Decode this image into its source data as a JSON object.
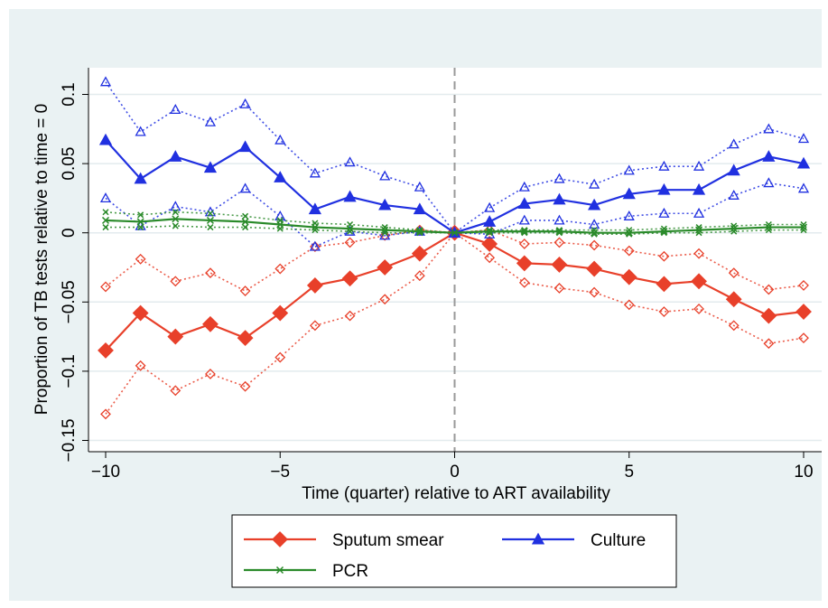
{
  "chart_data": {
    "type": "line",
    "xlabel": "Time (quarter) relative to ART availability",
    "ylabel": "Proportion of TB tests relative to time = 0",
    "xlim": [
      -10,
      10
    ],
    "ylim": [
      -0.15,
      0.1
    ],
    "xticks": [
      -10,
      -5,
      0,
      5,
      10
    ],
    "xtick_labels": [
      "−10",
      "−5",
      "0",
      "5",
      "10"
    ],
    "yticks": [
      -0.15,
      -0.1,
      -0.05,
      0,
      0.05,
      0.1
    ],
    "ytick_labels": [
      "−0.15",
      "−0.1",
      "−0.05",
      "0",
      "0.05",
      "0.1"
    ],
    "grid": true,
    "reference_line_x": 0,
    "legend_position": "bottom",
    "x": [
      -10,
      -9,
      -8,
      -7,
      -6,
      -5,
      -4,
      -3,
      -2,
      -1,
      0,
      1,
      2,
      3,
      4,
      5,
      6,
      7,
      8,
      9,
      10
    ],
    "series": [
      {
        "name": "Sputum smear",
        "color": "#e8402a",
        "marker": "diamond",
        "values": [
          -0.085,
          -0.058,
          -0.075,
          -0.066,
          -0.076,
          -0.058,
          -0.038,
          -0.033,
          -0.025,
          -0.015,
          0,
          -0.008,
          -0.022,
          -0.023,
          -0.026,
          -0.032,
          -0.037,
          -0.035,
          -0.048,
          -0.06,
          -0.057
        ],
        "ci_upper": [
          -0.039,
          -0.019,
          -0.035,
          -0.029,
          -0.042,
          -0.026,
          -0.01,
          -0.007,
          -0.002,
          0.002,
          0,
          0.002,
          -0.008,
          -0.007,
          -0.009,
          -0.013,
          -0.017,
          -0.015,
          -0.029,
          -0.041,
          -0.038
        ],
        "ci_lower": [
          -0.131,
          -0.096,
          -0.114,
          -0.102,
          -0.111,
          -0.09,
          -0.067,
          -0.06,
          -0.048,
          -0.031,
          0,
          -0.018,
          -0.036,
          -0.04,
          -0.043,
          -0.052,
          -0.057,
          -0.055,
          -0.067,
          -0.08,
          -0.076
        ]
      },
      {
        "name": "Culture",
        "color": "#2030e0",
        "marker": "triangle",
        "values": [
          0.067,
          0.039,
          0.055,
          0.047,
          0.062,
          0.04,
          0.017,
          0.026,
          0.02,
          0.017,
          0,
          0.008,
          0.021,
          0.024,
          0.02,
          0.028,
          0.031,
          0.031,
          0.045,
          0.055,
          0.05
        ],
        "ci_upper": [
          0.109,
          0.073,
          0.089,
          0.08,
          0.093,
          0.067,
          0.043,
          0.051,
          0.041,
          0.033,
          0,
          0.018,
          0.033,
          0.039,
          0.035,
          0.045,
          0.048,
          0.048,
          0.064,
          0.075,
          0.068
        ],
        "ci_lower": [
          0.025,
          0.005,
          0.019,
          0.015,
          0.032,
          0.012,
          -0.01,
          0.001,
          -0.002,
          0.001,
          0,
          -0.001,
          0.009,
          0.009,
          0.006,
          0.012,
          0.014,
          0.014,
          0.027,
          0.036,
          0.032
        ]
      },
      {
        "name": "PCR",
        "color": "#2a8a2a",
        "marker": "x",
        "values": [
          0.009,
          0.008,
          0.01,
          0.009,
          0.008,
          0.006,
          0.004,
          0.003,
          0.002,
          0.001,
          0,
          0.001,
          0.001,
          0.001,
          0.0,
          0.0,
          0.001,
          0.002,
          0.003,
          0.004,
          0.004
        ],
        "ci_upper": [
          0.015,
          0.013,
          0.015,
          0.014,
          0.012,
          0.009,
          0.007,
          0.006,
          0.004,
          0.002,
          0,
          0.002,
          0.002,
          0.002,
          0.002,
          0.002,
          0.003,
          0.004,
          0.005,
          0.006,
          0.006
        ],
        "ci_lower": [
          0.004,
          0.004,
          0.005,
          0.004,
          0.004,
          0.003,
          0.002,
          0.001,
          0.0,
          0.0,
          0,
          0.0,
          0.0,
          0.0,
          -0.001,
          -0.001,
          0.0,
          0.0,
          0.001,
          0.002,
          0.002
        ]
      }
    ]
  }
}
